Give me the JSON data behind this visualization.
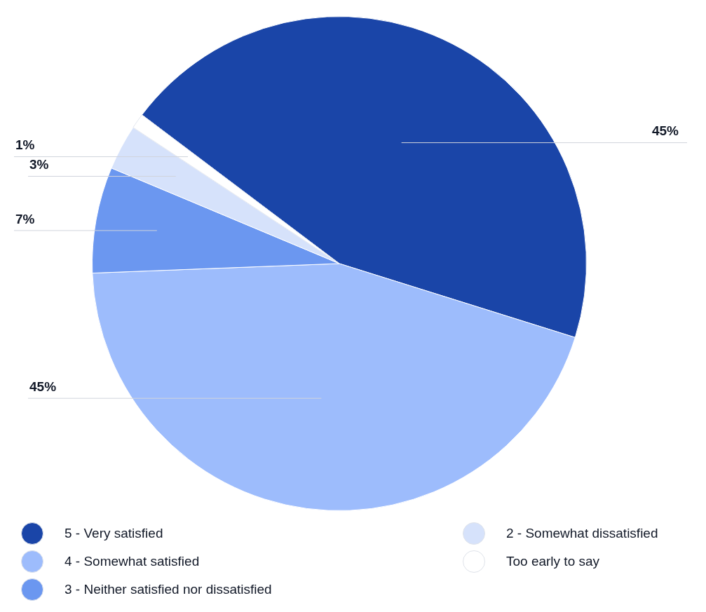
{
  "chart_data": {
    "type": "pie",
    "categories": [
      "5 - Very satisfied",
      "4 - Somewhat satisfied",
      "3 - Neither satisfied nor dissatisfied",
      "2 - Somewhat dissatisfied",
      "Too early to say"
    ],
    "values": [
      45,
      45,
      7,
      3,
      1
    ],
    "colors": [
      "#1a45a8",
      "#9dbcfc",
      "#6b97f0",
      "#d6e2fb",
      "#ffffff"
    ],
    "value_labels": [
      "45%",
      "45%",
      "7%",
      "3%",
      "1%"
    ],
    "legend": "bottom"
  }
}
